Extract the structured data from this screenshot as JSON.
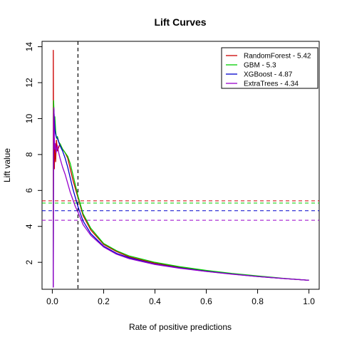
{
  "chart_data": {
    "type": "line",
    "title": "Lift Curves",
    "xlabel": "Rate of positive predictions",
    "ylabel": "Lift value",
    "xlim": [
      -0.04,
      1.04
    ],
    "ylim": [
      0.5,
      14.3
    ],
    "x_ticks": [
      0.0,
      0.2,
      0.4,
      0.6,
      0.8,
      1.0
    ],
    "x_tick_labels": [
      "0.0",
      "0.2",
      "0.4",
      "0.6",
      "0.8",
      "1.0"
    ],
    "y_ticks": [
      2,
      4,
      6,
      8,
      10,
      12,
      14
    ],
    "y_tick_labels": [
      "2",
      "4",
      "6",
      "8",
      "10",
      "12",
      "14"
    ],
    "grid": false,
    "legend_position": "top-right",
    "cutoff_x": 0.1,
    "series": [
      {
        "name": "RandomForest - 5.42",
        "color": "#cc0000",
        "reference_lift": 5.42,
        "x": [
          0.004,
          0.004,
          0.005,
          0.006,
          0.008,
          0.01,
          0.013,
          0.016,
          0.02,
          0.025,
          0.03,
          0.04,
          0.05,
          0.06,
          0.07,
          0.08,
          0.09,
          0.1,
          0.12,
          0.15,
          0.2,
          0.25,
          0.3,
          0.4,
          0.5,
          0.6,
          0.7,
          0.8,
          0.9,
          1.0
        ],
        "y": [
          0.6,
          13.8,
          7.5,
          8.9,
          7.2,
          8.6,
          7.6,
          8.8,
          8.2,
          8.4,
          8.6,
          8.3,
          8.1,
          7.8,
          7.2,
          6.6,
          6.1,
          5.6,
          4.6,
          3.8,
          3.0,
          2.6,
          2.3,
          1.95,
          1.72,
          1.52,
          1.37,
          1.22,
          1.1,
          1.0
        ]
      },
      {
        "name": "GBM - 5.3",
        "color": "#00cc00",
        "reference_lift": 5.3,
        "x": [
          0.004,
          0.005,
          0.006,
          0.008,
          0.01,
          0.013,
          0.016,
          0.02,
          0.025,
          0.03,
          0.04,
          0.05,
          0.06,
          0.07,
          0.08,
          0.09,
          0.1,
          0.12,
          0.15,
          0.2,
          0.25,
          0.3,
          0.4,
          0.5,
          0.6,
          0.7,
          0.8,
          0.9,
          1.0
        ],
        "y": [
          1.2,
          11.0,
          10.6,
          9.8,
          10.1,
          9.3,
          8.9,
          9.0,
          8.7,
          8.6,
          8.3,
          8.1,
          7.9,
          7.5,
          6.9,
          6.3,
          5.7,
          4.7,
          3.9,
          3.05,
          2.65,
          2.35,
          2.0,
          1.75,
          1.55,
          1.38,
          1.24,
          1.11,
          1.0
        ]
      },
      {
        "name": "XGBoost - 4.87",
        "color": "#0000cc",
        "reference_lift": 4.87,
        "x": [
          0.004,
          0.005,
          0.006,
          0.008,
          0.01,
          0.012,
          0.015,
          0.02,
          0.025,
          0.03,
          0.04,
          0.05,
          0.06,
          0.07,
          0.08,
          0.09,
          0.1,
          0.12,
          0.15,
          0.2,
          0.25,
          0.3,
          0.4,
          0.5,
          0.6,
          0.7,
          0.8,
          0.9,
          1.0
        ],
        "y": [
          0.6,
          9.6,
          10.5,
          10.0,
          9.4,
          9.2,
          9.0,
          8.9,
          8.7,
          8.5,
          8.2,
          7.8,
          7.3,
          6.7,
          6.1,
          5.6,
          5.1,
          4.3,
          3.6,
          2.9,
          2.5,
          2.25,
          1.9,
          1.68,
          1.5,
          1.35,
          1.21,
          1.1,
          1.0
        ]
      },
      {
        "name": "ExtraTrees - 4.34",
        "color": "#9900cc",
        "reference_lift": 4.34,
        "x": [
          0.004,
          0.005,
          0.006,
          0.008,
          0.01,
          0.012,
          0.015,
          0.02,
          0.025,
          0.03,
          0.04,
          0.05,
          0.06,
          0.07,
          0.08,
          0.09,
          0.1,
          0.12,
          0.15,
          0.2,
          0.25,
          0.3,
          0.4,
          0.5,
          0.6,
          0.7,
          0.8,
          0.9,
          1.0
        ],
        "y": [
          0.6,
          9.5,
          10.6,
          8.9,
          8.3,
          8.6,
          8.1,
          8.5,
          8.1,
          7.8,
          7.3,
          6.9,
          6.4,
          5.9,
          5.5,
          5.1,
          4.8,
          4.1,
          3.5,
          2.85,
          2.45,
          2.2,
          1.88,
          1.66,
          1.49,
          1.34,
          1.21,
          1.1,
          1.0
        ]
      }
    ]
  }
}
